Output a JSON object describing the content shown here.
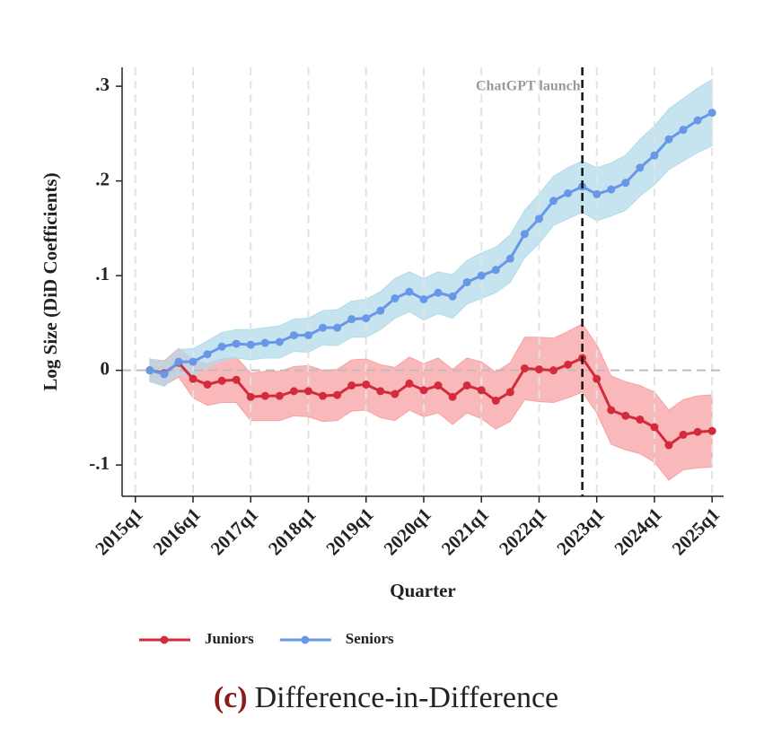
{
  "chart_data": {
    "type": "line",
    "title": "Difference-in-Difference",
    "caption_label": "(c)",
    "x_label": "Quarter",
    "y_label": "Log Size (DiD Coefficients)",
    "annotation": {
      "text": "ChatGPT launch",
      "x": 2022.75
    },
    "hline": 0,
    "grid": true,
    "legend": "bottom",
    "xlim": [
      2014.77,
      2025.2
    ],
    "ylim": [
      -0.133,
      0.32
    ],
    "xticks": [
      {
        "value": 2015,
        "label": "2015q1"
      },
      {
        "value": 2016,
        "label": "2016q1"
      },
      {
        "value": 2017,
        "label": "2017q1"
      },
      {
        "value": 2018,
        "label": "2018q1"
      },
      {
        "value": 2019,
        "label": "2019q1"
      },
      {
        "value": 2020,
        "label": "2020q1"
      },
      {
        "value": 2021,
        "label": "2021q1"
      },
      {
        "value": 2022,
        "label": "2022q1"
      },
      {
        "value": 2023,
        "label": "2023q1"
      },
      {
        "value": 2024,
        "label": "2024q1"
      },
      {
        "value": 2025,
        "label": "2025q1"
      }
    ],
    "yticks": [
      {
        "value": -0.1,
        "label": "-.1"
      },
      0,
      {
        "value": 0.1,
        "label": ".1"
      },
      {
        "value": 0.2,
        "label": ".2"
      },
      {
        "value": 0.3,
        "label": ".3"
      }
    ],
    "x": [
      2015.25,
      2015.5,
      2015.75,
      2016,
      2016.25,
      2016.5,
      2016.75,
      2017,
      2017.25,
      2017.5,
      2017.75,
      2018,
      2018.25,
      2018.5,
      2018.75,
      2019,
      2019.25,
      2019.5,
      2019.75,
      2020,
      2020.25,
      2020.5,
      2020.75,
      2021,
      2021.25,
      2021.5,
      2021.75,
      2022,
      2022.25,
      2022.5,
      2022.75,
      2023,
      2023.25,
      2023.5,
      2023.75,
      2024,
      2024.25,
      2024.5,
      2024.75,
      2025
    ],
    "series": [
      {
        "name": "Juniors",
        "color": "#d22b3c",
        "band_color": "#f7a1a3",
        "values": [
          0,
          -0.003,
          0.008,
          -0.009,
          -0.015,
          -0.011,
          -0.01,
          -0.028,
          -0.027,
          -0.027,
          -0.022,
          -0.022,
          -0.027,
          -0.026,
          -0.016,
          -0.015,
          -0.022,
          -0.025,
          -0.014,
          -0.021,
          -0.016,
          -0.028,
          -0.016,
          -0.021,
          -0.032,
          -0.023,
          0.002,
          0.001,
          0.0,
          0.006,
          0.013,
          -0.009,
          -0.042,
          -0.048,
          -0.052,
          -0.06,
          -0.079,
          -0.068,
          -0.065,
          -0.064
        ],
        "lower": [
          -0.012,
          -0.016,
          -0.007,
          -0.029,
          -0.037,
          -0.034,
          -0.034,
          -0.053,
          -0.053,
          -0.053,
          -0.048,
          -0.049,
          -0.054,
          -0.053,
          -0.043,
          -0.042,
          -0.05,
          -0.053,
          -0.042,
          -0.049,
          -0.045,
          -0.057,
          -0.045,
          -0.051,
          -0.062,
          -0.054,
          -0.031,
          -0.033,
          -0.034,
          -0.029,
          -0.023,
          -0.045,
          -0.078,
          -0.084,
          -0.088,
          -0.097,
          -0.116,
          -0.105,
          -0.103,
          -0.102
        ],
        "upper": [
          0.012,
          0.01,
          0.023,
          0.011,
          0.007,
          0.012,
          0.014,
          -0.003,
          -0.001,
          -0.001,
          0.004,
          0.005,
          0.0,
          0.001,
          0.011,
          0.012,
          0.006,
          0.003,
          0.014,
          0.007,
          0.013,
          0.001,
          0.013,
          0.009,
          -0.002,
          0.008,
          0.035,
          0.035,
          0.034,
          0.041,
          0.049,
          0.027,
          -0.006,
          -0.012,
          -0.016,
          -0.023,
          -0.042,
          -0.031,
          -0.027,
          -0.026
        ]
      },
      {
        "name": "Seniors",
        "color": "#6797e6",
        "band_color": "#b3dbea",
        "values": [
          0,
          -0.004,
          0.009,
          0.009,
          0.017,
          0.025,
          0.028,
          0.027,
          0.029,
          0.03,
          0.037,
          0.037,
          0.045,
          0.045,
          0.054,
          0.055,
          0.063,
          0.076,
          0.083,
          0.075,
          0.082,
          0.078,
          0.093,
          0.1,
          0.106,
          0.118,
          0.144,
          0.16,
          0.179,
          0.187,
          0.194,
          0.186,
          0.191,
          0.198,
          0.214,
          0.227,
          0.244,
          0.254,
          0.264,
          0.272
        ],
        "lower": [
          -0.012,
          -0.017,
          -0.004,
          -0.005,
          0.003,
          0.01,
          0.013,
          0.011,
          0.013,
          0.013,
          0.02,
          0.019,
          0.027,
          0.026,
          0.035,
          0.035,
          0.043,
          0.055,
          0.062,
          0.053,
          0.06,
          0.055,
          0.07,
          0.076,
          0.082,
          0.093,
          0.119,
          0.134,
          0.153,
          0.16,
          0.167,
          0.158,
          0.163,
          0.169,
          0.184,
          0.196,
          0.212,
          0.221,
          0.23,
          0.237
        ],
        "upper": [
          0.012,
          0.009,
          0.022,
          0.023,
          0.031,
          0.04,
          0.043,
          0.043,
          0.045,
          0.047,
          0.054,
          0.055,
          0.063,
          0.064,
          0.073,
          0.075,
          0.083,
          0.097,
          0.104,
          0.097,
          0.104,
          0.101,
          0.116,
          0.124,
          0.13,
          0.143,
          0.169,
          0.186,
          0.205,
          0.214,
          0.221,
          0.214,
          0.219,
          0.227,
          0.244,
          0.258,
          0.276,
          0.287,
          0.298,
          0.307
        ]
      }
    ]
  }
}
